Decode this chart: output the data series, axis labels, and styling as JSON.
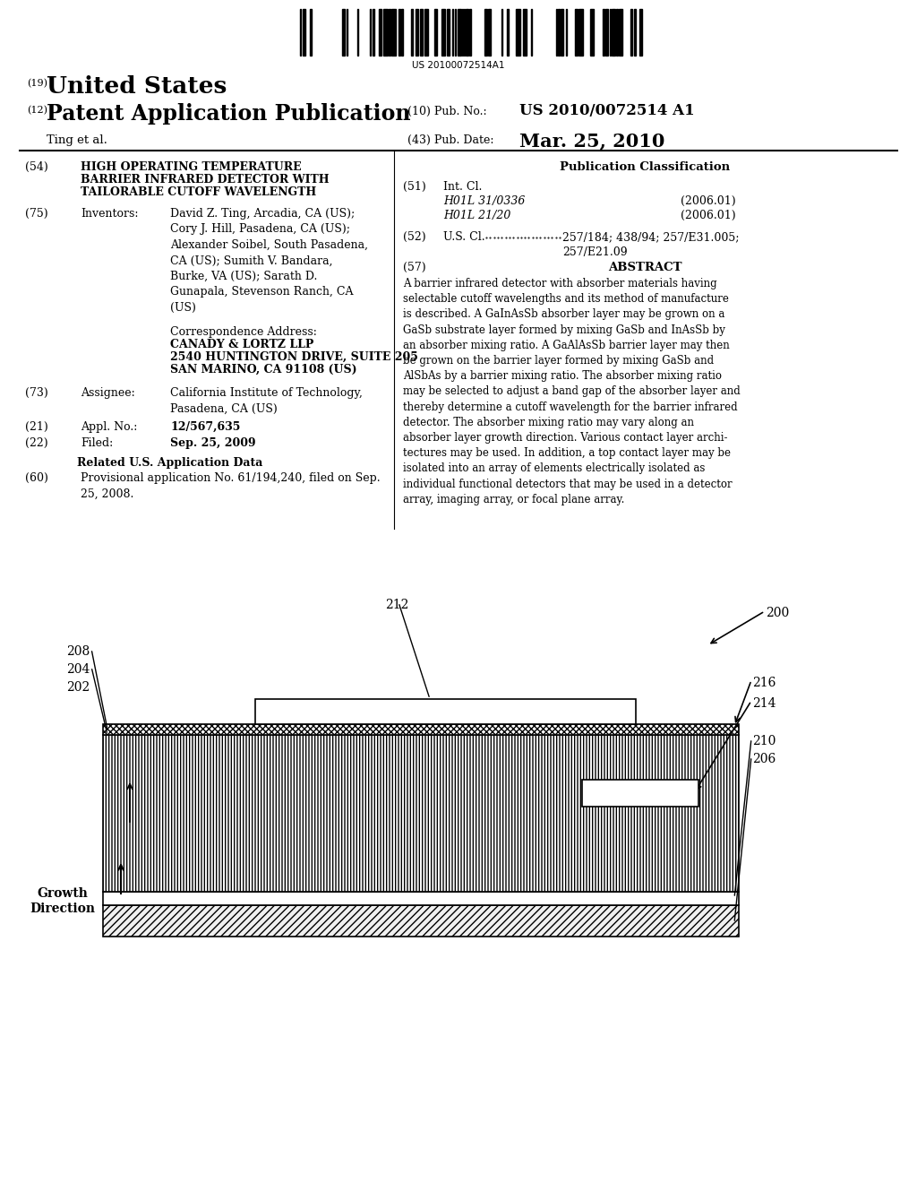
{
  "barcode_number": "US 20100072514A1",
  "country": "United States",
  "kind_19": "(19)",
  "kind_12": "(12)",
  "pub_title": "Patent Application Publication",
  "authors": "Ting et al.",
  "pub_no_label": "(10) Pub. No.:",
  "pub_no": "US 2010/0072514 A1",
  "pub_date_label": "(43) Pub. Date:",
  "pub_date": "Mar. 25, 2010",
  "field_54_label": "(54)",
  "field_54_line1": "HIGH OPERATING TEMPERATURE",
  "field_54_line2": "BARRIER INFRARED DETECTOR WITH",
  "field_54_line3": "TAILORABLE CUTOFF WAVELENGTH",
  "field_75_label": "(75)",
  "inventors_label": "Inventors:",
  "inventors_text": "David Z. Ting, Arcadia, CA (US);\nCory J. Hill, Pasadena, CA (US);\nAlexander Soibel, South Pasadena,\nCA (US); Sumith V. Bandara,\nBurke, VA (US); Sarath D.\nGunapala, Stevenson Ranch, CA\n(US)",
  "corr_address_label": "Correspondence Address:",
  "corr_address_line1": "CANADY & LORTZ LLP",
  "corr_address_line2": "2540 HUNTINGTON DRIVE, SUITE 205",
  "corr_address_line3": "SAN MARINO, CA 91108 (US)",
  "field_73_label": "(73)",
  "assignee_label": "Assignee:",
  "assignee_text": "California Institute of Technology,\nPasadena, CA (US)",
  "field_21_label": "(21)",
  "appl_no_label": "Appl. No.:",
  "appl_no": "12/567,635",
  "field_22_label": "(22)",
  "filed_label": "Filed:",
  "filed_date": "Sep. 25, 2009",
  "related_data_title": "Related U.S. Application Data",
  "field_60_label": "(60)",
  "provisional_text": "Provisional application No. 61/194,240, filed on Sep.\n25, 2008.",
  "pub_class_title": "Publication Classification",
  "field_51_label": "(51)",
  "intl_cl_label": "Int. Cl.",
  "intl_cl_1": "H01L 31/0336",
  "intl_cl_1_date": "(2006.01)",
  "intl_cl_2": "H01L 21/20",
  "intl_cl_2_date": "(2006.01)",
  "field_52_label": "(52)",
  "us_cl_label": "U.S. Cl.",
  "us_cl_text": "257/184; 438/94; 257/E31.005;\n257/E21.09",
  "field_57_label": "(57)",
  "abstract_title": "ABSTRACT",
  "abstract_text": "A barrier infrared detector with absorber materials having\nselectable cutoff wavelengths and its method of manufacture\nis described. A GaInAsSb absorber layer may be grown on a\nGaSb substrate layer formed by mixing GaSb and InAsSb by\nan absorber mixing ratio. A GaAlAsSb barrier layer may then\nbe grown on the barrier layer formed by mixing GaSb and\nAlSbAs by a barrier mixing ratio. The absorber mixing ratio\nmay be selected to adjust a band gap of the absorber layer and\nthereby determine a cutoff wavelength for the barrier infrared\ndetector. The absorber mixing ratio may vary along an\nabsorber layer growth direction. Various contact layer archi-\ntectures may be used. In addition, a top contact layer may be\nisolated into an array of elements electrically isolated as\nindividual functional detectors that may be used in a detector\narray, imaging array, or focal plane array.",
  "bg_color": "#ffffff",
  "text_color": "#000000"
}
